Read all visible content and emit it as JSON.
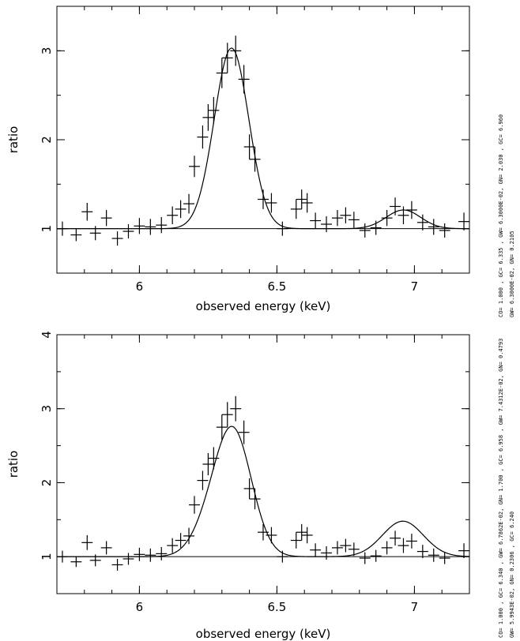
{
  "chart_data": [
    {
      "type": "scatter",
      "xlabel": "observed energy (keV)",
      "ylabel": "ratio",
      "xlim": [
        5.7,
        7.2
      ],
      "ylim": [
        0.5,
        3.5
      ],
      "xticks": [
        6,
        6.5,
        7
      ],
      "yticks": [
        1,
        2,
        3
      ],
      "baseline": 1.0,
      "xerr": 0.02,
      "points": [
        {
          "x": 5.72,
          "y": 1.0,
          "e": 0.08
        },
        {
          "x": 5.77,
          "y": 0.93,
          "e": 0.07
        },
        {
          "x": 5.81,
          "y": 1.19,
          "e": 0.1
        },
        {
          "x": 5.84,
          "y": 0.95,
          "e": 0.08
        },
        {
          "x": 5.88,
          "y": 1.12,
          "e": 0.09
        },
        {
          "x": 5.92,
          "y": 0.89,
          "e": 0.08
        },
        {
          "x": 5.96,
          "y": 0.97,
          "e": 0.08
        },
        {
          "x": 6.0,
          "y": 1.03,
          "e": 0.09
        },
        {
          "x": 6.04,
          "y": 1.02,
          "e": 0.09
        },
        {
          "x": 6.08,
          "y": 1.04,
          "e": 0.09
        },
        {
          "x": 6.12,
          "y": 1.15,
          "e": 0.1
        },
        {
          "x": 6.15,
          "y": 1.22,
          "e": 0.1
        },
        {
          "x": 6.18,
          "y": 1.28,
          "e": 0.11
        },
        {
          "x": 6.2,
          "y": 1.7,
          "e": 0.12
        },
        {
          "x": 6.23,
          "y": 2.03,
          "e": 0.13
        },
        {
          "x": 6.25,
          "y": 2.25,
          "e": 0.15
        },
        {
          "x": 6.27,
          "y": 2.33,
          "e": 0.15
        },
        {
          "x": 6.3,
          "y": 2.75,
          "e": 0.17
        },
        {
          "x": 6.32,
          "y": 2.92,
          "e": 0.17
        },
        {
          "x": 6.35,
          "y": 3.0,
          "e": 0.17
        },
        {
          "x": 6.38,
          "y": 2.68,
          "e": 0.16
        },
        {
          "x": 6.4,
          "y": 1.92,
          "e": 0.14
        },
        {
          "x": 6.42,
          "y": 1.78,
          "e": 0.14
        },
        {
          "x": 6.45,
          "y": 1.33,
          "e": 0.11
        },
        {
          "x": 6.48,
          "y": 1.29,
          "e": 0.11
        },
        {
          "x": 6.52,
          "y": 1.0,
          "e": 0.08
        },
        {
          "x": 6.57,
          "y": 1.22,
          "e": 0.11
        },
        {
          "x": 6.59,
          "y": 1.33,
          "e": 0.11
        },
        {
          "x": 6.61,
          "y": 1.29,
          "e": 0.11
        },
        {
          "x": 6.64,
          "y": 1.09,
          "e": 0.09
        },
        {
          "x": 6.68,
          "y": 1.05,
          "e": 0.09
        },
        {
          "x": 6.72,
          "y": 1.12,
          "e": 0.09
        },
        {
          "x": 6.75,
          "y": 1.15,
          "e": 0.09
        },
        {
          "x": 6.78,
          "y": 1.1,
          "e": 0.09
        },
        {
          "x": 6.82,
          "y": 0.98,
          "e": 0.08
        },
        {
          "x": 6.86,
          "y": 1.01,
          "e": 0.08
        },
        {
          "x": 6.9,
          "y": 1.12,
          "e": 0.09
        },
        {
          "x": 6.93,
          "y": 1.25,
          "e": 0.1
        },
        {
          "x": 6.96,
          "y": 1.15,
          "e": 0.1
        },
        {
          "x": 6.99,
          "y": 1.21,
          "e": 0.1
        },
        {
          "x": 7.03,
          "y": 1.07,
          "e": 0.09
        },
        {
          "x": 7.07,
          "y": 1.02,
          "e": 0.09
        },
        {
          "x": 7.11,
          "y": 0.98,
          "e": 0.08
        },
        {
          "x": 7.18,
          "y": 1.08,
          "e": 0.1
        }
      ],
      "model": {
        "continuum": 1.0,
        "lines": [
          {
            "center": 6.335,
            "sigma": 0.063,
            "norm": 2.03
          },
          {
            "center": 6.96,
            "sigma": 0.063,
            "norm": 0.21
          }
        ]
      },
      "side_label": [
        "CO=  1.000    , GC=  6.335    , GW= 6.3000E-02, GN=  2.030    , GC=  6.960",
        "GW= 6.3000E-02, GN= 0.2105"
      ]
    },
    {
      "type": "scatter",
      "xlabel": "observed energy (keV)",
      "ylabel": "ratio",
      "xlim": [
        5.7,
        7.2
      ],
      "ylim": [
        0.5,
        4.0
      ],
      "xticks": [
        6,
        6.5,
        7
      ],
      "yticks": [
        1,
        2,
        3,
        4
      ],
      "baseline": 1.0,
      "xerr": 0.02,
      "points": [
        {
          "x": 5.72,
          "y": 1.0,
          "e": 0.08
        },
        {
          "x": 5.77,
          "y": 0.93,
          "e": 0.07
        },
        {
          "x": 5.81,
          "y": 1.19,
          "e": 0.1
        },
        {
          "x": 5.84,
          "y": 0.95,
          "e": 0.08
        },
        {
          "x": 5.88,
          "y": 1.12,
          "e": 0.09
        },
        {
          "x": 5.92,
          "y": 0.89,
          "e": 0.08
        },
        {
          "x": 5.96,
          "y": 0.97,
          "e": 0.08
        },
        {
          "x": 6.0,
          "y": 1.03,
          "e": 0.09
        },
        {
          "x": 6.04,
          "y": 1.02,
          "e": 0.09
        },
        {
          "x": 6.08,
          "y": 1.04,
          "e": 0.09
        },
        {
          "x": 6.12,
          "y": 1.15,
          "e": 0.1
        },
        {
          "x": 6.15,
          "y": 1.22,
          "e": 0.1
        },
        {
          "x": 6.18,
          "y": 1.28,
          "e": 0.11
        },
        {
          "x": 6.2,
          "y": 1.7,
          "e": 0.12
        },
        {
          "x": 6.23,
          "y": 2.03,
          "e": 0.13
        },
        {
          "x": 6.25,
          "y": 2.25,
          "e": 0.15
        },
        {
          "x": 6.27,
          "y": 2.33,
          "e": 0.15
        },
        {
          "x": 6.3,
          "y": 2.75,
          "e": 0.17
        },
        {
          "x": 6.32,
          "y": 2.92,
          "e": 0.17
        },
        {
          "x": 6.35,
          "y": 3.0,
          "e": 0.17
        },
        {
          "x": 6.38,
          "y": 2.68,
          "e": 0.16
        },
        {
          "x": 6.4,
          "y": 1.92,
          "e": 0.14
        },
        {
          "x": 6.42,
          "y": 1.78,
          "e": 0.14
        },
        {
          "x": 6.45,
          "y": 1.33,
          "e": 0.11
        },
        {
          "x": 6.48,
          "y": 1.29,
          "e": 0.11
        },
        {
          "x": 6.52,
          "y": 1.0,
          "e": 0.08
        },
        {
          "x": 6.57,
          "y": 1.22,
          "e": 0.11
        },
        {
          "x": 6.59,
          "y": 1.33,
          "e": 0.11
        },
        {
          "x": 6.61,
          "y": 1.29,
          "e": 0.11
        },
        {
          "x": 6.64,
          "y": 1.09,
          "e": 0.09
        },
        {
          "x": 6.68,
          "y": 1.05,
          "e": 0.09
        },
        {
          "x": 6.72,
          "y": 1.12,
          "e": 0.09
        },
        {
          "x": 6.75,
          "y": 1.15,
          "e": 0.09
        },
        {
          "x": 6.78,
          "y": 1.1,
          "e": 0.09
        },
        {
          "x": 6.82,
          "y": 0.98,
          "e": 0.08
        },
        {
          "x": 6.86,
          "y": 1.01,
          "e": 0.08
        },
        {
          "x": 6.9,
          "y": 1.12,
          "e": 0.09
        },
        {
          "x": 6.93,
          "y": 1.25,
          "e": 0.1
        },
        {
          "x": 6.96,
          "y": 1.15,
          "e": 0.1
        },
        {
          "x": 6.99,
          "y": 1.21,
          "e": 0.1
        },
        {
          "x": 7.03,
          "y": 1.07,
          "e": 0.09
        },
        {
          "x": 7.07,
          "y": 1.02,
          "e": 0.09
        },
        {
          "x": 7.11,
          "y": 0.98,
          "e": 0.08
        },
        {
          "x": 7.18,
          "y": 1.08,
          "e": 0.1
        }
      ],
      "model": {
        "continuum": 1.0,
        "lines": [
          {
            "center": 6.34,
            "sigma": 0.0679,
            "norm": 1.7
          },
          {
            "center": 6.958,
            "sigma": 0.0743,
            "norm": 0.4793
          },
          {
            "center": 6.24,
            "sigma": 0.0599,
            "norm": 0.2306
          }
        ]
      },
      "side_label": [
        "CO=  1.000    , GC=  6.340    , GW= 6.7862E-02, GN=  1.700    , GC=  6.958    , GW= 7.4312E-02, GN= 0.4793",
        "GW= 5.9943E-02, GN= 0.2306    , GC=  6.240"
      ]
    }
  ]
}
